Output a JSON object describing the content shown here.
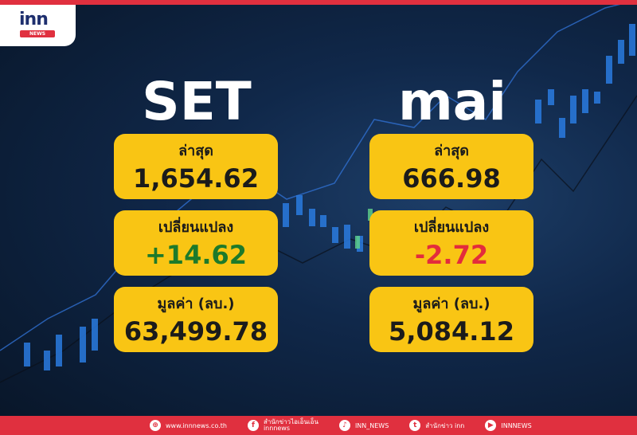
{
  "brand": {
    "logo_text": "inn",
    "logo_sub": "NEWS"
  },
  "set": {
    "title": "SET",
    "latest_label": "ล่าสุด",
    "latest": "1,654.62",
    "change_label": "เปลี่ยนแปลง",
    "change": "+14.62",
    "value_label": "มูลค่า (ลบ.)",
    "value": "63,499.78"
  },
  "mai": {
    "title": "mai",
    "latest_label": "ล่าสุด",
    "latest": "666.98",
    "change_label": "เปลี่ยนแปลง",
    "change": "-2.72",
    "value_label": "มูลค่า (ลบ.)",
    "value": "5,084.12"
  },
  "colors": {
    "card": "#f9c514",
    "positive": "#1d7a2a",
    "negative": "#e32c3c",
    "footer": "#e0303f"
  },
  "footer": {
    "website": "www.innnews.co.th",
    "facebook_line1": "สำนักข่าวไอเอ็นเอ็น",
    "facebook_line2": "innnews",
    "tiktok": "INN_NEWS",
    "twitter": "สำนักข่าว inn",
    "youtube": "INNNEWS"
  }
}
